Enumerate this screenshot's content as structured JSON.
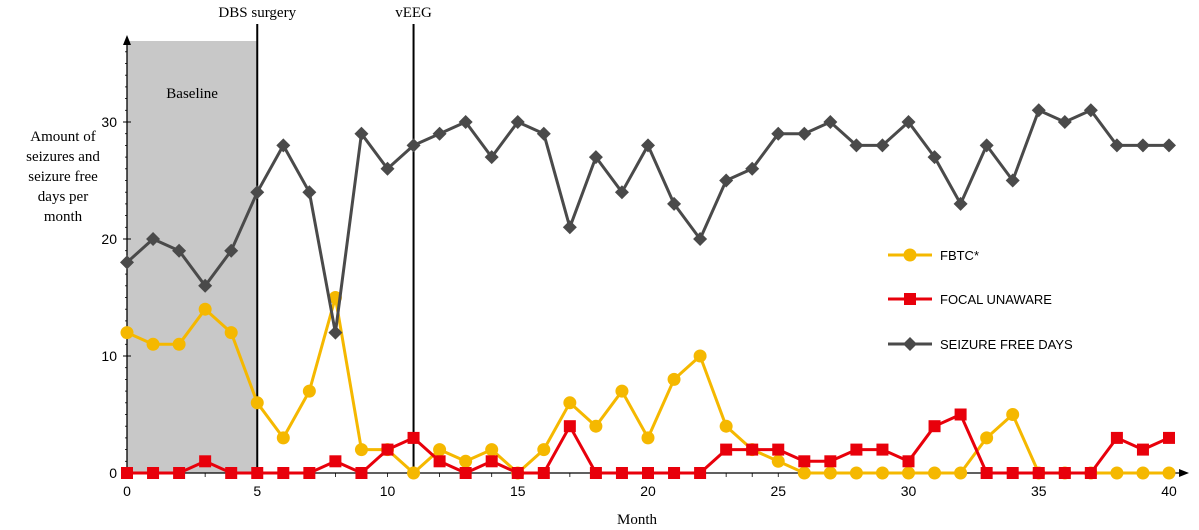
{
  "chart_data": {
    "type": "line",
    "title": "",
    "xlabel": "Month",
    "ylabel_lines": [
      "Amount of",
      "seizures and",
      "seizure free",
      "days per",
      "month"
    ],
    "xlim": [
      0,
      40
    ],
    "ylim": [
      0,
      37
    ],
    "x_ticks": [
      0,
      5,
      10,
      15,
      20,
      25,
      30,
      35,
      40
    ],
    "y_ticks": [
      0,
      10,
      20,
      30
    ],
    "grid": false,
    "legend_position": "right",
    "shaded_region": {
      "label": "Baseline",
      "x_start": 0,
      "x_end": 5,
      "color": "#c8c8c8"
    },
    "vertical_lines": [
      {
        "x": 5,
        "label": "DBS surgery"
      },
      {
        "x": 11,
        "label": "vEEG"
      }
    ],
    "x": [
      0,
      1,
      2,
      3,
      4,
      5,
      6,
      7,
      8,
      9,
      10,
      11,
      12,
      13,
      14,
      15,
      16,
      17,
      18,
      19,
      20,
      21,
      22,
      23,
      24,
      25,
      26,
      27,
      28,
      29,
      30,
      31,
      32,
      33,
      34,
      35,
      36,
      37,
      38,
      39,
      40
    ],
    "series": [
      {
        "name": "FBTC*",
        "color": "#f5b800",
        "marker": "circle",
        "values": [
          12,
          11,
          11,
          14,
          12,
          6,
          3,
          7,
          15,
          2,
          2,
          0,
          2,
          1,
          2,
          0,
          2,
          6,
          4,
          7,
          3,
          8,
          10,
          4,
          2,
          1,
          0,
          0,
          0,
          0,
          0,
          0,
          0,
          3,
          5,
          0,
          0,
          0,
          0,
          0,
          0
        ]
      },
      {
        "name": "FOCAL UNAWARE",
        "color": "#e8000b",
        "marker": "square",
        "values": [
          0,
          0,
          0,
          1,
          0,
          0,
          0,
          0,
          1,
          0,
          2,
          3,
          1,
          0,
          1,
          0,
          0,
          4,
          0,
          0,
          0,
          0,
          0,
          2,
          2,
          2,
          1,
          1,
          2,
          2,
          1,
          4,
          5,
          0,
          0,
          0,
          0,
          0,
          3,
          2,
          3
        ]
      },
      {
        "name": "SEIZURE FREE DAYS",
        "color": "#4a4a4a",
        "marker": "diamond",
        "values": [
          18,
          20,
          19,
          16,
          19,
          24,
          28,
          24,
          12,
          29,
          26,
          28,
          29,
          30,
          27,
          30,
          29,
          21,
          27,
          24,
          28,
          23,
          20,
          25,
          26,
          29,
          29,
          30,
          28,
          28,
          30,
          27,
          23,
          28,
          25,
          31,
          30,
          31,
          28,
          28,
          28
        ]
      }
    ]
  }
}
